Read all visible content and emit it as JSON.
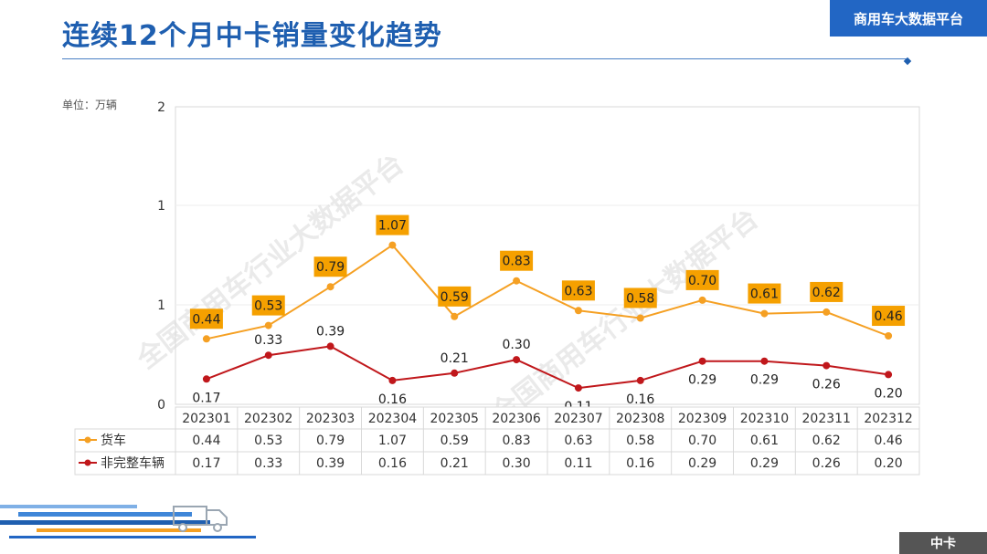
{
  "header": {
    "title": "连续12个月中卡销量变化趋势",
    "brand": "商用车大数据平台"
  },
  "unit_label": "单位：万辆",
  "footer": {
    "category": "中卡"
  },
  "watermarks": [
    "全国商用车行业大数据平台",
    "全国商用车行业大数据平台"
  ],
  "colors": {
    "title": "#1f5fb0",
    "series_truck": "#f5a023",
    "series_truck_label_bg": "#f5a000",
    "series_incomplete": "#c0171b",
    "grid": "#d9d9d9"
  },
  "chart_data": {
    "type": "line",
    "categories": [
      "202301",
      "202302",
      "202303",
      "202304",
      "202305",
      "202306",
      "202307",
      "202308",
      "202309",
      "202310",
      "202311",
      "202312"
    ],
    "y_ticks": [
      "0",
      "1",
      "1",
      "2"
    ],
    "ylim": [
      0,
      2
    ],
    "series": [
      {
        "name": "货车",
        "values": [
          0.44,
          0.53,
          0.79,
          1.07,
          0.59,
          0.83,
          0.63,
          0.58,
          0.7,
          0.61,
          0.62,
          0.46
        ],
        "labels": [
          "0.44",
          "0.53",
          "0.79",
          "1.07",
          "0.59",
          "0.83",
          "0.63",
          "0.58",
          "0.70",
          "0.61",
          "0.62",
          "0.46"
        ]
      },
      {
        "name": "非完整车辆",
        "values": [
          0.17,
          0.33,
          0.39,
          0.16,
          0.21,
          0.3,
          0.11,
          0.16,
          0.29,
          0.29,
          0.26,
          0.2
        ],
        "labels": [
          "0.17",
          "0.33",
          "0.39",
          "0.16",
          "0.21",
          "0.30",
          "0.11",
          "0.16",
          "0.29",
          "0.29",
          "0.26",
          "0.20"
        ]
      }
    ]
  }
}
